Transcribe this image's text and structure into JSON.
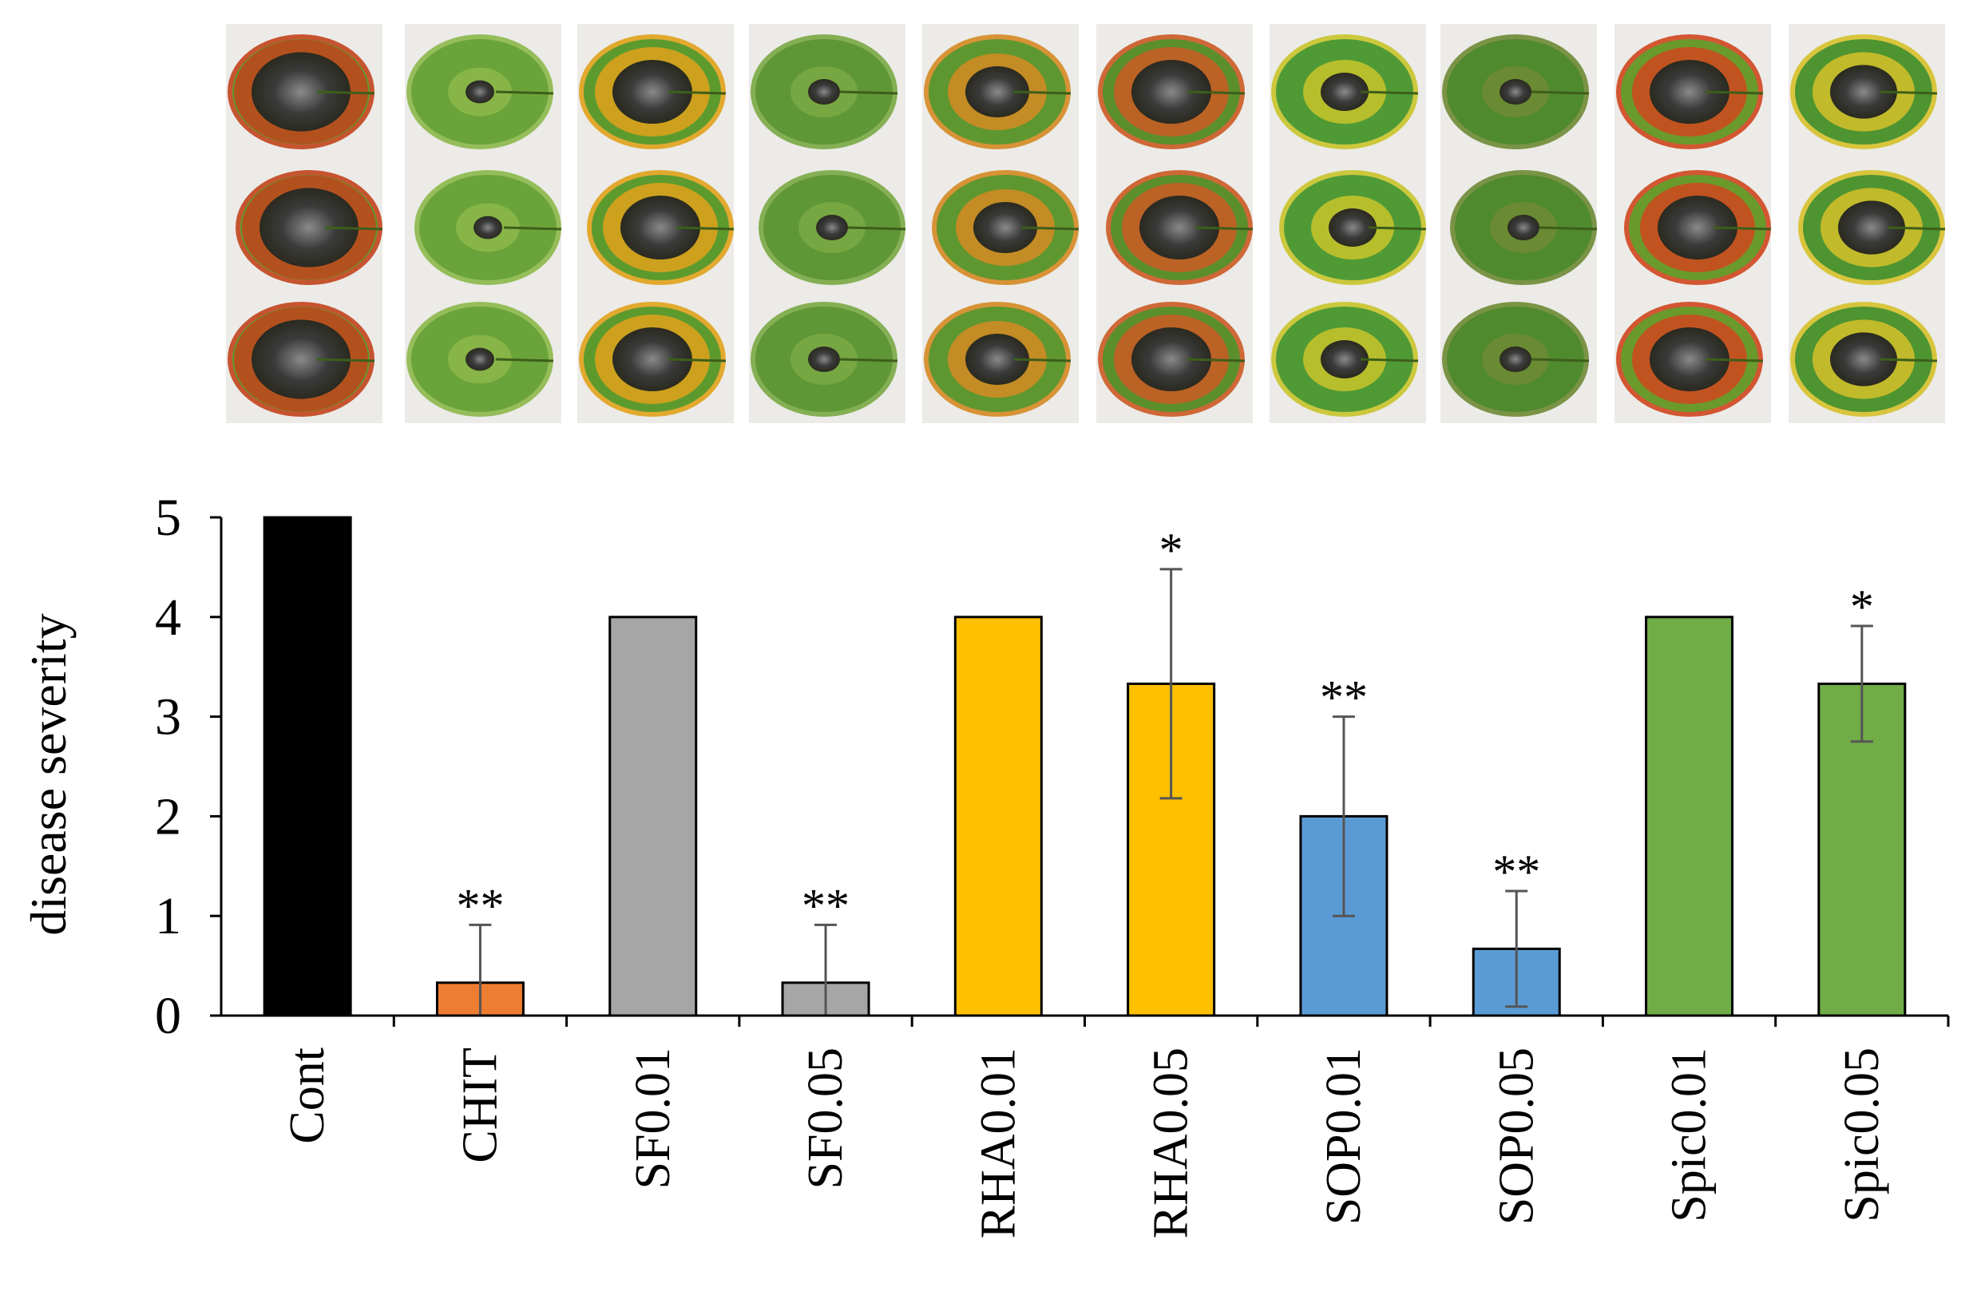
{
  "chart_data": {
    "type": "bar",
    "title": "",
    "xlabel": "",
    "ylabel": "disease severity",
    "ylim": [
      0,
      5
    ],
    "yticks": [
      "0",
      "1",
      "2",
      "3",
      "4",
      "5"
    ],
    "grid": false,
    "categories": [
      "Cont",
      "CHIT",
      "SF0.01",
      "SF0.05",
      "RHA0.01",
      "RHA0.05",
      "SOP0.01",
      "SOP0.05",
      "Spic0.01",
      "Spic0.05"
    ],
    "values": [
      5.0,
      0.33,
      4.0,
      0.33,
      4.0,
      3.33,
      2.0,
      0.67,
      4.0,
      3.33
    ],
    "errors": [
      0,
      0.58,
      0,
      0.58,
      0,
      1.15,
      1.0,
      0.58,
      0,
      0.58
    ],
    "significance": [
      "",
      "**",
      "",
      "**",
      "",
      "*",
      "**",
      "**",
      "",
      "*"
    ],
    "colors": [
      "#000000",
      "#ED7D31",
      "#A6A6A6",
      "#A6A6A6",
      "#FFC000",
      "#FFC000",
      "#5B9BD5",
      "#5B9BD5",
      "#70AD47",
      "#70AD47"
    ]
  },
  "leaf_panels": {
    "count": 10,
    "description_icon": "leaf-photo-icon"
  }
}
